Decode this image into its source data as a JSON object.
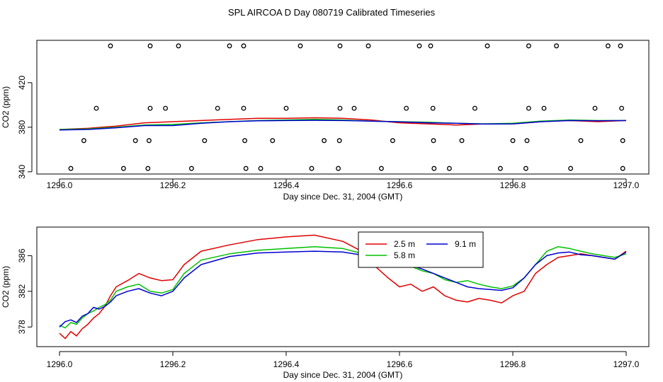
{
  "page": {
    "title": "SPL AIRCOA D  Day 080719  Calibrated Timeseries"
  },
  "colors": {
    "2.5 m": "#e00000",
    "5.8 m": "#00c000",
    "9.1 m": "#0000d0",
    "axis": "#000000"
  },
  "chart_data": [
    {
      "type": "line",
      "panel": "top",
      "title": "SPL AIRCOA D  Day 080719  Calibrated Timeseries",
      "xlabel": "Day since Dec. 31, 2004 (GMT)",
      "ylabel": "CO2 (ppm)",
      "xlim": [
        1295.96,
        1297.04
      ],
      "ylim": [
        338,
        458
      ],
      "xticks": [
        1296.0,
        1296.2,
        1296.4,
        1296.6,
        1296.8,
        1297.0
      ],
      "xtick_labels": [
        "1296.0",
        "1296.2",
        "1296.4",
        "1296.6",
        "1296.8",
        "1297.0"
      ],
      "yticks": [
        340,
        380,
        420
      ],
      "ytick_labels": [
        "340",
        "380",
        "420"
      ],
      "series": [
        {
          "name": "2.5 m",
          "color": "#e00000",
          "x": [
            1296.0,
            1296.05,
            1296.1,
            1296.15,
            1296.2,
            1296.25,
            1296.3,
            1296.35,
            1296.4,
            1296.45,
            1296.5,
            1296.55,
            1296.6,
            1296.65,
            1296.7,
            1296.75,
            1296.8,
            1296.85,
            1296.9,
            1296.95,
            1297.0
          ],
          "y": [
            378,
            379,
            381,
            384,
            385,
            386,
            387,
            388,
            388,
            388.5,
            388,
            386.5,
            384,
            383,
            382,
            383,
            383,
            385,
            386,
            385,
            386
          ]
        },
        {
          "name": "5.8 m",
          "color": "#00c000",
          "x": [
            1296.0,
            1296.05,
            1296.1,
            1296.15,
            1296.2,
            1296.25,
            1296.3,
            1296.35,
            1296.4,
            1296.45,
            1296.5,
            1296.55,
            1296.6,
            1296.65,
            1296.7,
            1296.75,
            1296.8,
            1296.85,
            1296.9,
            1296.95,
            1297.0
          ],
          "y": [
            378,
            378.5,
            380,
            382,
            382.5,
            384,
            385,
            386,
            386.5,
            387,
            386.5,
            385.5,
            385,
            384.5,
            383.5,
            383,
            383.5,
            385.5,
            386.5,
            386,
            386
          ]
        },
        {
          "name": "9.1 m",
          "color": "#0000d0",
          "x": [
            1296.0,
            1296.05,
            1296.1,
            1296.15,
            1296.2,
            1296.25,
            1296.3,
            1296.35,
            1296.4,
            1296.45,
            1296.5,
            1296.55,
            1296.6,
            1296.65,
            1296.7,
            1296.75,
            1296.8,
            1296.85,
            1296.9,
            1296.95,
            1297.0
          ],
          "y": [
            377.5,
            378,
            379.5,
            381.5,
            381.5,
            383.5,
            385,
            385.8,
            386,
            386.2,
            386,
            385.5,
            384.8,
            384,
            383.5,
            382.8,
            383,
            385,
            386,
            385.8,
            386
          ]
        }
      ],
      "markers": {
        "name": "calibration points",
        "marker": "open-circle",
        "points": [
          [
            1296.09,
            453
          ],
          [
            1296.16,
            453
          ],
          [
            1296.21,
            453
          ],
          [
            1296.3,
            453
          ],
          [
            1296.325,
            453
          ],
          [
            1296.425,
            453
          ],
          [
            1296.495,
            453
          ],
          [
            1296.545,
            453
          ],
          [
            1296.635,
            453
          ],
          [
            1296.655,
            453
          ],
          [
            1296.755,
            453
          ],
          [
            1296.828,
            453
          ],
          [
            1296.877,
            453
          ],
          [
            1296.968,
            453
          ],
          [
            1296.99,
            453
          ],
          [
            1296.065,
            397
          ],
          [
            1296.16,
            397
          ],
          [
            1296.187,
            397
          ],
          [
            1296.279,
            397
          ],
          [
            1296.325,
            397
          ],
          [
            1296.4,
            397
          ],
          [
            1296.495,
            397
          ],
          [
            1296.52,
            397
          ],
          [
            1296.612,
            397
          ],
          [
            1296.659,
            397
          ],
          [
            1296.733,
            397
          ],
          [
            1296.828,
            397
          ],
          [
            1296.855,
            397
          ],
          [
            1296.945,
            397
          ],
          [
            1296.992,
            397
          ],
          [
            1296.043,
            368
          ],
          [
            1296.134,
            368
          ],
          [
            1296.158,
            368
          ],
          [
            1296.256,
            368
          ],
          [
            1296.327,
            368
          ],
          [
            1296.376,
            368
          ],
          [
            1296.467,
            368
          ],
          [
            1296.494,
            368
          ],
          [
            1296.588,
            368
          ],
          [
            1296.66,
            368
          ],
          [
            1296.71,
            368
          ],
          [
            1296.8,
            368
          ],
          [
            1296.825,
            368
          ],
          [
            1296.92,
            368
          ],
          [
            1296.994,
            368
          ],
          [
            1296.02,
            343
          ],
          [
            1296.113,
            343
          ],
          [
            1296.156,
            343
          ],
          [
            1296.233,
            343
          ],
          [
            1296.329,
            343
          ],
          [
            1296.355,
            343
          ],
          [
            1296.445,
            343
          ],
          [
            1296.492,
            343
          ],
          [
            1296.568,
            343
          ],
          [
            1296.661,
            343
          ],
          [
            1296.688,
            343
          ],
          [
            1296.778,
            343
          ],
          [
            1296.823,
            343
          ],
          [
            1296.902,
            343
          ],
          [
            1296.994,
            343
          ]
        ]
      }
    },
    {
      "type": "line",
      "panel": "bottom",
      "xlabel": "Day since Dec. 31, 2004 (GMT)",
      "ylabel": "CO2 (ppm)",
      "xlim": [
        1295.96,
        1297.04
      ],
      "ylim": [
        375.8,
        389.2
      ],
      "xticks": [
        1296.0,
        1296.2,
        1296.4,
        1296.6,
        1296.8,
        1297.0
      ],
      "xtick_labels": [
        "1296.0",
        "1296.2",
        "1296.4",
        "1296.6",
        "1296.8",
        "1297.0"
      ],
      "yticks": [
        378,
        382,
        386
      ],
      "ytick_labels": [
        "378",
        "382",
        "386"
      ],
      "legend": {
        "position": "top-center",
        "entries": [
          "2.5 m",
          "9.1 m",
          "5.8 m"
        ]
      },
      "series": [
        {
          "name": "2.5 m",
          "color": "#e00000",
          "x": [
            1296.0,
            1296.01,
            1296.02,
            1296.03,
            1296.04,
            1296.05,
            1296.06,
            1296.07,
            1296.08,
            1296.09,
            1296.1,
            1296.12,
            1296.14,
            1296.16,
            1296.18,
            1296.2,
            1296.22,
            1296.25,
            1296.3,
            1296.35,
            1296.4,
            1296.45,
            1296.5,
            1296.53,
            1296.55,
            1296.58,
            1296.6,
            1296.62,
            1296.64,
            1296.66,
            1296.68,
            1296.7,
            1296.72,
            1296.74,
            1296.76,
            1296.78,
            1296.8,
            1296.82,
            1296.84,
            1296.86,
            1296.88,
            1296.9,
            1296.92,
            1296.94,
            1296.96,
            1296.98,
            1297.0
          ],
          "y": [
            377.3,
            376.7,
            377.5,
            377.0,
            377.8,
            378.3,
            379.0,
            379.5,
            380.3,
            381.5,
            382.5,
            383.2,
            384.0,
            383.5,
            383.2,
            383.3,
            385.0,
            386.5,
            387.2,
            387.8,
            388.1,
            388.3,
            387.6,
            386.6,
            385.2,
            383.5,
            382.5,
            382.8,
            382.0,
            382.5,
            381.5,
            381.0,
            380.8,
            381.2,
            381.0,
            380.7,
            381.5,
            382.0,
            384.0,
            385.0,
            385.8,
            386.0,
            386.2,
            386.0,
            385.8,
            385.6,
            386.5
          ]
        },
        {
          "name": "5.8 m",
          "color": "#00c000",
          "x": [
            1296.0,
            1296.01,
            1296.02,
            1296.03,
            1296.04,
            1296.05,
            1296.06,
            1296.07,
            1296.08,
            1296.09,
            1296.1,
            1296.12,
            1296.14,
            1296.16,
            1296.18,
            1296.2,
            1296.22,
            1296.25,
            1296.3,
            1296.35,
            1296.4,
            1296.45,
            1296.5,
            1296.53,
            1296.55,
            1296.58,
            1296.6,
            1296.62,
            1296.64,
            1296.66,
            1296.68,
            1296.7,
            1296.72,
            1296.74,
            1296.76,
            1296.78,
            1296.8,
            1296.82,
            1296.84,
            1296.86,
            1296.88,
            1296.9,
            1296.92,
            1296.94,
            1296.96,
            1296.98,
            1297.0
          ],
          "y": [
            378.2,
            377.9,
            378.5,
            378.3,
            379.0,
            379.5,
            379.8,
            380.2,
            380.5,
            381.0,
            382.0,
            382.5,
            382.8,
            382.0,
            381.8,
            382.2,
            384.0,
            385.5,
            386.2,
            386.6,
            386.8,
            387.0,
            386.8,
            386.3,
            386.0,
            385.5,
            385.0,
            384.8,
            384.3,
            384.0,
            383.3,
            383.0,
            383.2,
            382.8,
            382.5,
            382.3,
            382.6,
            383.5,
            385.0,
            386.5,
            387.0,
            386.8,
            386.5,
            386.2,
            386.0,
            385.8,
            386.2
          ]
        },
        {
          "name": "9.1 m",
          "color": "#0000d0",
          "x": [
            1296.0,
            1296.01,
            1296.02,
            1296.03,
            1296.04,
            1296.05,
            1296.06,
            1296.07,
            1296.08,
            1296.09,
            1296.1,
            1296.12,
            1296.14,
            1296.16,
            1296.18,
            1296.2,
            1296.22,
            1296.25,
            1296.3,
            1296.35,
            1296.4,
            1296.45,
            1296.5,
            1296.53,
            1296.55,
            1296.58,
            1296.6,
            1296.62,
            1296.64,
            1296.66,
            1296.68,
            1296.7,
            1296.72,
            1296.74,
            1296.76,
            1296.78,
            1296.8,
            1296.82,
            1296.84,
            1296.86,
            1296.88,
            1296.9,
            1296.92,
            1296.94,
            1296.96,
            1296.98,
            1297.0
          ],
          "y": [
            378.0,
            378.6,
            378.8,
            378.5,
            379.2,
            379.5,
            380.2,
            380.0,
            380.3,
            380.8,
            381.5,
            382.0,
            382.3,
            381.8,
            381.5,
            382.0,
            383.5,
            385.0,
            385.9,
            386.3,
            386.4,
            386.5,
            386.4,
            386.1,
            385.8,
            385.5,
            385.2,
            384.9,
            384.5,
            384.0,
            383.5,
            383.0,
            382.5,
            382.3,
            382.2,
            382.1,
            382.4,
            383.5,
            385.0,
            386.0,
            386.3,
            386.4,
            386.1,
            386.0,
            385.8,
            385.6,
            386.4
          ]
        }
      ]
    }
  ]
}
